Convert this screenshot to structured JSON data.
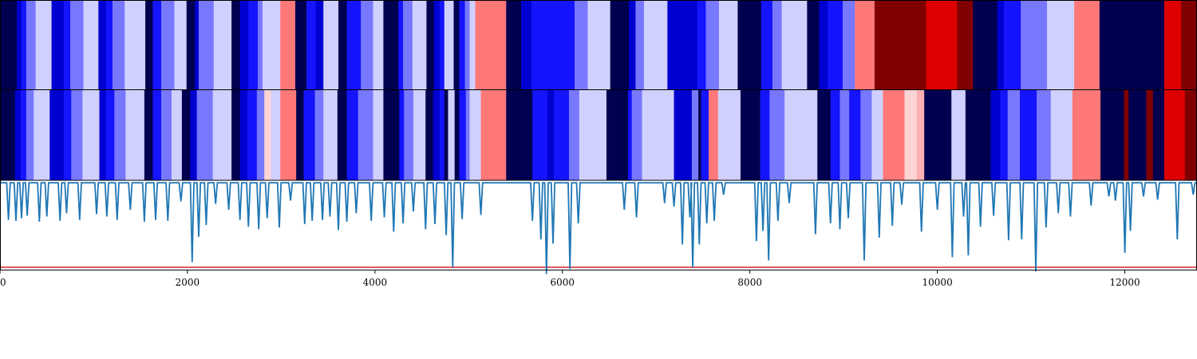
{
  "chart_data": {
    "type": "heatmap",
    "x_range": [
      0,
      12770
    ],
    "x_ticks": [
      0,
      2000,
      4000,
      6000,
      8000,
      10000,
      12000
    ],
    "colormap": "bwr",
    "value_range": [
      0,
      10
    ],
    "heatmap_rows": [
      {
        "row": 1,
        "segments": [
          [
            0,
            180,
            0
          ],
          [
            180,
            230,
            1
          ],
          [
            230,
            280,
            2
          ],
          [
            280,
            380,
            3
          ],
          [
            380,
            550,
            4
          ],
          [
            550,
            680,
            1
          ],
          [
            680,
            750,
            2
          ],
          [
            750,
            890,
            3
          ],
          [
            890,
            1050,
            4
          ],
          [
            1050,
            1130,
            1
          ],
          [
            1130,
            1200,
            2
          ],
          [
            1200,
            1330,
            3
          ],
          [
            1330,
            1550,
            4
          ],
          [
            1550,
            1630,
            0
          ],
          [
            1630,
            1720,
            2
          ],
          [
            1720,
            1860,
            3
          ],
          [
            1860,
            1990,
            4
          ],
          [
            1990,
            2080,
            0
          ],
          [
            2080,
            2120,
            1
          ],
          [
            2120,
            2280,
            3
          ],
          [
            2280,
            2470,
            4
          ],
          [
            2470,
            2560,
            0
          ],
          [
            2560,
            2650,
            1
          ],
          [
            2650,
            2750,
            2
          ],
          [
            2750,
            2800,
            3
          ],
          [
            2800,
            2990,
            4
          ],
          [
            2990,
            3150,
            7
          ],
          [
            3150,
            3270,
            0
          ],
          [
            3270,
            3370,
            2
          ],
          [
            3370,
            3450,
            1
          ],
          [
            3450,
            3610,
            4
          ],
          [
            3610,
            3700,
            0
          ],
          [
            3700,
            3850,
            2
          ],
          [
            3850,
            3980,
            3
          ],
          [
            3980,
            4090,
            4
          ],
          [
            4090,
            4250,
            0
          ],
          [
            4250,
            4300,
            2
          ],
          [
            4300,
            4400,
            3
          ],
          [
            4400,
            4550,
            4
          ],
          [
            4550,
            4630,
            0
          ],
          [
            4630,
            4690,
            1
          ],
          [
            4690,
            4740,
            2
          ],
          [
            4740,
            4840,
            4
          ],
          [
            4840,
            4900,
            0
          ],
          [
            4900,
            4960,
            2
          ],
          [
            4960,
            5010,
            3
          ],
          [
            5010,
            5070,
            4
          ],
          [
            5070,
            5400,
            7
          ],
          [
            5400,
            5560,
            0
          ],
          [
            5560,
            5670,
            1
          ],
          [
            5670,
            6130,
            2
          ],
          [
            6130,
            6270,
            3
          ],
          [
            6270,
            6510,
            4
          ],
          [
            6510,
            6710,
            0
          ],
          [
            6710,
            6780,
            1
          ],
          [
            6780,
            6870,
            3
          ],
          [
            6870,
            7120,
            4
          ],
          [
            7120,
            7440,
            1
          ],
          [
            7440,
            7530,
            2
          ],
          [
            7530,
            7670,
            3
          ],
          [
            7670,
            7870,
            4
          ],
          [
            7870,
            8120,
            0
          ],
          [
            8120,
            8240,
            2
          ],
          [
            8240,
            8340,
            3
          ],
          [
            8340,
            8610,
            4
          ],
          [
            8610,
            8740,
            0
          ],
          [
            8740,
            8830,
            1
          ],
          [
            8830,
            8990,
            2
          ],
          [
            8990,
            9120,
            3
          ],
          [
            9120,
            9330,
            7
          ],
          [
            9330,
            9880,
            10
          ],
          [
            9880,
            10210,
            9
          ],
          [
            10210,
            10380,
            10
          ],
          [
            10380,
            10520,
            0
          ],
          [
            10520,
            10640,
            0
          ],
          [
            10640,
            10710,
            1
          ],
          [
            10710,
            10790,
            2
          ],
          [
            10790,
            10890,
            2
          ],
          [
            10890,
            11170,
            3
          ],
          [
            11170,
            11460,
            4
          ],
          [
            11460,
            11730,
            7
          ],
          [
            11730,
            12420,
            0
          ],
          [
            12420,
            12600,
            9
          ],
          [
            12600,
            12770,
            10
          ]
        ]
      },
      {
        "row": 2,
        "segments": [
          [
            0,
            160,
            0
          ],
          [
            160,
            220,
            1
          ],
          [
            220,
            280,
            2
          ],
          [
            280,
            360,
            3
          ],
          [
            360,
            530,
            4
          ],
          [
            530,
            680,
            1
          ],
          [
            680,
            760,
            2
          ],
          [
            760,
            880,
            3
          ],
          [
            880,
            1060,
            4
          ],
          [
            1060,
            1130,
            1
          ],
          [
            1130,
            1220,
            2
          ],
          [
            1220,
            1340,
            3
          ],
          [
            1340,
            1540,
            4
          ],
          [
            1540,
            1630,
            0
          ],
          [
            1630,
            1720,
            2
          ],
          [
            1720,
            1830,
            3
          ],
          [
            1830,
            1940,
            4
          ],
          [
            1940,
            2030,
            0
          ],
          [
            2030,
            2100,
            1
          ],
          [
            2100,
            2270,
            3
          ],
          [
            2270,
            2470,
            4
          ],
          [
            2470,
            2560,
            0
          ],
          [
            2560,
            2640,
            1
          ],
          [
            2640,
            2740,
            2
          ],
          [
            2740,
            2820,
            3
          ],
          [
            2820,
            2890,
            5
          ],
          [
            2890,
            2990,
            4
          ],
          [
            2990,
            3160,
            7
          ],
          [
            3160,
            3240,
            0
          ],
          [
            3240,
            3360,
            2
          ],
          [
            3360,
            3450,
            3
          ],
          [
            3450,
            3600,
            4
          ],
          [
            3600,
            3700,
            0
          ],
          [
            3700,
            3820,
            2
          ],
          [
            3820,
            3980,
            3
          ],
          [
            3980,
            4090,
            4
          ],
          [
            4090,
            4260,
            0
          ],
          [
            4260,
            4310,
            2
          ],
          [
            4310,
            4410,
            3
          ],
          [
            4410,
            4540,
            4
          ],
          [
            4540,
            4620,
            0
          ],
          [
            4620,
            4690,
            1
          ],
          [
            4690,
            4740,
            2
          ],
          [
            4740,
            4780,
            0
          ],
          [
            4780,
            4850,
            4
          ],
          [
            4850,
            4900,
            0
          ],
          [
            4900,
            4970,
            2
          ],
          [
            4970,
            5010,
            3
          ],
          [
            5010,
            5130,
            4
          ],
          [
            5130,
            5400,
            7
          ],
          [
            5400,
            5560,
            0
          ],
          [
            5560,
            5680,
            0
          ],
          [
            5680,
            5840,
            2
          ],
          [
            5840,
            5910,
            1
          ],
          [
            5910,
            6070,
            2
          ],
          [
            6070,
            6180,
            3
          ],
          [
            6180,
            6470,
            4
          ],
          [
            6470,
            6560,
            0
          ],
          [
            6560,
            6700,
            0
          ],
          [
            6700,
            6740,
            2
          ],
          [
            6740,
            6850,
            3
          ],
          [
            6850,
            7190,
            4
          ],
          [
            7190,
            7380,
            1
          ],
          [
            7380,
            7450,
            3
          ],
          [
            7450,
            7480,
            0
          ],
          [
            7480,
            7560,
            2
          ],
          [
            7560,
            7660,
            7
          ],
          [
            7660,
            7900,
            4
          ],
          [
            7900,
            8110,
            0
          ],
          [
            8110,
            8210,
            2
          ],
          [
            8210,
            8370,
            3
          ],
          [
            8370,
            8720,
            4
          ],
          [
            8720,
            8860,
            0
          ],
          [
            8860,
            8960,
            2
          ],
          [
            8960,
            9060,
            3
          ],
          [
            9060,
            9180,
            2
          ],
          [
            9180,
            9300,
            3
          ],
          [
            9300,
            9420,
            4
          ],
          [
            9420,
            9650,
            7
          ],
          [
            9650,
            9780,
            5
          ],
          [
            9780,
            9860,
            6
          ],
          [
            9860,
            10150,
            0
          ],
          [
            10150,
            10300,
            4
          ],
          [
            10300,
            10570,
            0
          ],
          [
            10570,
            10670,
            1
          ],
          [
            10670,
            10750,
            2
          ],
          [
            10750,
            10880,
            3
          ],
          [
            10880,
            11060,
            2
          ],
          [
            11060,
            11210,
            3
          ],
          [
            11210,
            11440,
            4
          ],
          [
            11440,
            11740,
            7
          ],
          [
            11740,
            11990,
            0
          ],
          [
            11990,
            12040,
            10
          ],
          [
            12040,
            12230,
            0
          ],
          [
            12230,
            12300,
            10
          ],
          [
            12300,
            12420,
            0
          ],
          [
            12420,
            12640,
            9
          ],
          [
            12640,
            12770,
            10
          ]
        ]
      }
    ],
    "line_series": {
      "color": "#1f77b4",
      "baseline_y": 0,
      "y_range": [
        -10,
        0.2
      ],
      "drops": [
        [
          90,
          -4.4
        ],
        [
          170,
          -4.5
        ],
        [
          230,
          -4.2
        ],
        [
          290,
          -3.9
        ],
        [
          420,
          -4.6
        ],
        [
          500,
          -4.0
        ],
        [
          640,
          -4.5
        ],
        [
          710,
          -3.6
        ],
        [
          850,
          -4.4
        ],
        [
          1030,
          -3.7
        ],
        [
          1140,
          -4.0
        ],
        [
          1250,
          -4.4
        ],
        [
          1390,
          -3.2
        ],
        [
          1540,
          -4.6
        ],
        [
          1660,
          -4.4
        ],
        [
          1790,
          -4.5
        ],
        [
          1930,
          -2.2
        ],
        [
          2050,
          -9.4
        ],
        [
          2120,
          -6.4
        ],
        [
          2200,
          -5.0
        ],
        [
          2300,
          -2.5
        ],
        [
          2440,
          -3.2
        ],
        [
          2560,
          -4.4
        ],
        [
          2650,
          -5.2
        ],
        [
          2760,
          -5.5
        ],
        [
          2850,
          -4.2
        ],
        [
          2980,
          -5.3
        ],
        [
          3100,
          -2.1
        ],
        [
          3250,
          -4.9
        ],
        [
          3330,
          -4.5
        ],
        [
          3440,
          -4.4
        ],
        [
          3520,
          -4.0
        ],
        [
          3610,
          -5.6
        ],
        [
          3700,
          -4.6
        ],
        [
          3800,
          -3.6
        ],
        [
          3960,
          -4.5
        ],
        [
          4100,
          -4.1
        ],
        [
          4200,
          -5.8
        ],
        [
          4300,
          -4.8
        ],
        [
          4410,
          -3.4
        ],
        [
          4540,
          -5.5
        ],
        [
          4640,
          -4.9
        ],
        [
          4760,
          -6.2
        ],
        [
          4830,
          -10.0
        ],
        [
          4930,
          -4.3
        ],
        [
          5130,
          -3.8
        ],
        [
          5680,
          -4.5
        ],
        [
          5770,
          -6.7
        ],
        [
          5830,
          -10.8
        ],
        [
          5900,
          -7.2
        ],
        [
          6080,
          -10.2
        ],
        [
          6170,
          -4.8
        ],
        [
          6660,
          -3.2
        ],
        [
          6790,
          -4.1
        ],
        [
          7090,
          -2.4
        ],
        [
          7190,
          -2.8
        ],
        [
          7280,
          -7.3
        ],
        [
          7360,
          -4.1
        ],
        [
          7390,
          -10.0
        ],
        [
          7460,
          -7.3
        ],
        [
          7540,
          -4.8
        ],
        [
          7620,
          -4.5
        ],
        [
          7720,
          -1.4
        ],
        [
          8070,
          -6.9
        ],
        [
          8140,
          -5.7
        ],
        [
          8200,
          -9.2
        ],
        [
          8300,
          -4.5
        ],
        [
          8420,
          -2.4
        ],
        [
          8700,
          -6.1
        ],
        [
          8860,
          -4.8
        ],
        [
          8960,
          -5.5
        ],
        [
          9050,
          -4.2
        ],
        [
          9220,
          -9.2
        ],
        [
          9380,
          -6.5
        ],
        [
          9520,
          -5.1
        ],
        [
          9620,
          -2.6
        ],
        [
          9830,
          -5.8
        ],
        [
          10000,
          -3.2
        ],
        [
          10160,
          -8.8
        ],
        [
          10280,
          -4.0
        ],
        [
          10330,
          -8.6
        ],
        [
          10460,
          -5.2
        ],
        [
          10600,
          -3.9
        ],
        [
          10760,
          -6.8
        ],
        [
          10900,
          -6.7
        ],
        [
          11050,
          -10.5
        ],
        [
          11160,
          -5.3
        ],
        [
          11290,
          -3.6
        ],
        [
          11420,
          -4.0
        ],
        [
          11640,
          -2.7
        ],
        [
          11830,
          -1.6
        ],
        [
          11900,
          -2.1
        ],
        [
          12000,
          -8.3
        ],
        [
          12060,
          -5.7
        ],
        [
          12200,
          -1.6
        ],
        [
          12350,
          -2.0
        ],
        [
          12560,
          -6.7
        ],
        [
          12730,
          -1.4
        ]
      ]
    },
    "threshold": {
      "y": -10,
      "color": "#d62728"
    }
  }
}
